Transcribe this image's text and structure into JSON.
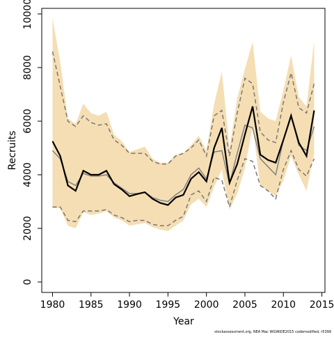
{
  "chart_data": {
    "type": "line",
    "xlabel": "Year",
    "ylabel": "Recruits",
    "footnote": "stockassessment.org, NEA Mac WGWIDE2015 codemodified, r5399",
    "x": [
      1980,
      1981,
      1982,
      1983,
      1984,
      1985,
      1986,
      1987,
      1988,
      1989,
      1990,
      1991,
      1992,
      1993,
      1994,
      1995,
      1996,
      1997,
      1998,
      1999,
      2000,
      2001,
      2002,
      2003,
      2004,
      2005,
      2006,
      2007,
      2008,
      2009,
      2010,
      2011,
      2012,
      2013,
      2014
    ],
    "band": {
      "color": "#f5deb3",
      "upper": [
        9850,
        8200,
        6100,
        5900,
        6650,
        6300,
        6200,
        6350,
        5500,
        5250,
        4850,
        4950,
        5050,
        4600,
        4450,
        4450,
        4750,
        4800,
        5100,
        5450,
        4900,
        6650,
        7850,
        5000,
        6850,
        7950,
        8950,
        6350,
        6100,
        6000,
        7150,
        8450,
        6900,
        6550,
        9000
      ],
      "lower": [
        2750,
        2750,
        2100,
        2000,
        2600,
        2500,
        2550,
        2650,
        2400,
        2300,
        2100,
        2150,
        2200,
        2050,
        1950,
        1900,
        2100,
        2300,
        2900,
        3100,
        2800,
        3550,
        4200,
        2700,
        3300,
        4250,
        5800,
        3600,
        3400,
        3200,
        3800,
        4700,
        4000,
        3400,
        4800
      ]
    },
    "series": [
      {
        "color": "#777777",
        "dash": true,
        "values": [
          8600,
          7300,
          6000,
          5800,
          6200,
          5950,
          5850,
          5900,
          5300,
          5100,
          4800,
          4800,
          4800,
          4500,
          4400,
          4400,
          4700,
          4800,
          5000,
          5300,
          4700,
          6200,
          6400,
          4700,
          6300,
          7600,
          7400,
          5600,
          5300,
          5200,
          6700,
          7800,
          6500,
          6300,
          7400
        ]
      },
      {
        "color": "#777777",
        "dash": true,
        "values": [
          2800,
          2800,
          2300,
          2250,
          2650,
          2650,
          2650,
          2700,
          2500,
          2400,
          2250,
          2300,
          2300,
          2150,
          2100,
          2100,
          2300,
          2450,
          3250,
          3400,
          3000,
          3900,
          3800,
          2800,
          3800,
          4600,
          4500,
          3600,
          3400,
          3100,
          4200,
          4900,
          4200,
          3950,
          4600
        ]
      },
      {
        "color": "#808080",
        "dash": false,
        "width": 1.5,
        "values": [
          4900,
          4600,
          3750,
          3600,
          4050,
          3950,
          3950,
          4000,
          3700,
          3500,
          3300,
          3300,
          3350,
          3150,
          3050,
          3000,
          3250,
          3450,
          4000,
          4250,
          3850,
          4850,
          4900,
          3650,
          4800,
          5850,
          5750,
          4600,
          4300,
          4000,
          5300,
          6250,
          5100,
          4900,
          5800
        ]
      },
      {
        "color": "#000000",
        "dash": false,
        "width": 2.2,
        "values": [
          5250,
          4700,
          3600,
          3400,
          4150,
          4000,
          4000,
          4150,
          3650,
          3450,
          3200,
          3280,
          3350,
          3100,
          2950,
          2870,
          3150,
          3250,
          3850,
          4100,
          3750,
          5000,
          5750,
          3700,
          4400,
          5500,
          6550,
          4750,
          4550,
          4450,
          5300,
          6200,
          5200,
          4700,
          6400
        ]
      }
    ],
    "xlim": [
      1978.6,
      2015.4
    ],
    "ylim": [
      -390,
      10208
    ],
    "xticks": [
      1980,
      1985,
      1990,
      1995,
      2000,
      2005,
      2010,
      2015
    ],
    "yticks": [
      0,
      2000,
      4000,
      6000,
      8000,
      10000
    ]
  }
}
